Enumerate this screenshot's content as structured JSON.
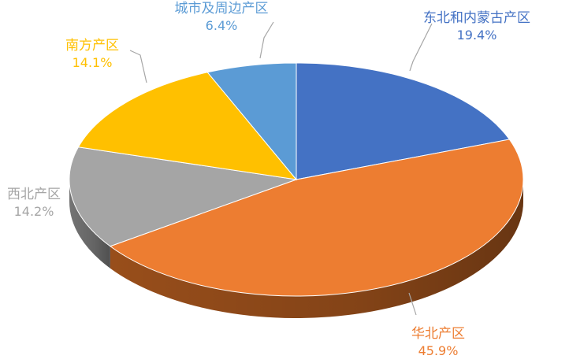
{
  "chart_data": {
    "type": "pie",
    "style": "3d-tilted",
    "title": "",
    "slices": [
      {
        "name": "东北和内蒙古产区",
        "value": 19.4,
        "value_label": "19.4%",
        "color": "#4472C4",
        "side_color": "#2F528F",
        "label_color": "#4472C4"
      },
      {
        "name": "华北产区",
        "value": 45.9,
        "value_label": "45.9%",
        "color": "#ED7D31",
        "side_color": "#A0521C",
        "label_color": "#ED7D31"
      },
      {
        "name": "西北产区",
        "value": 14.2,
        "value_label": "14.2%",
        "color": "#A5A5A5",
        "side_color": "#7A7A7A",
        "label_color": "#A5A5A5"
      },
      {
        "name": "南方产区",
        "value": 14.1,
        "value_label": "14.1%",
        "color": "#FFC000",
        "side_color": "#B88A00",
        "label_color": "#FFC000"
      },
      {
        "name": "城市及周边产区",
        "value": 6.4,
        "value_label": "6.4%",
        "color": "#5B9BD5",
        "side_color": "#3E74A6",
        "label_color": "#5B9BD5"
      }
    ],
    "legend": "none",
    "labels": "outside-with-leader-lines"
  }
}
